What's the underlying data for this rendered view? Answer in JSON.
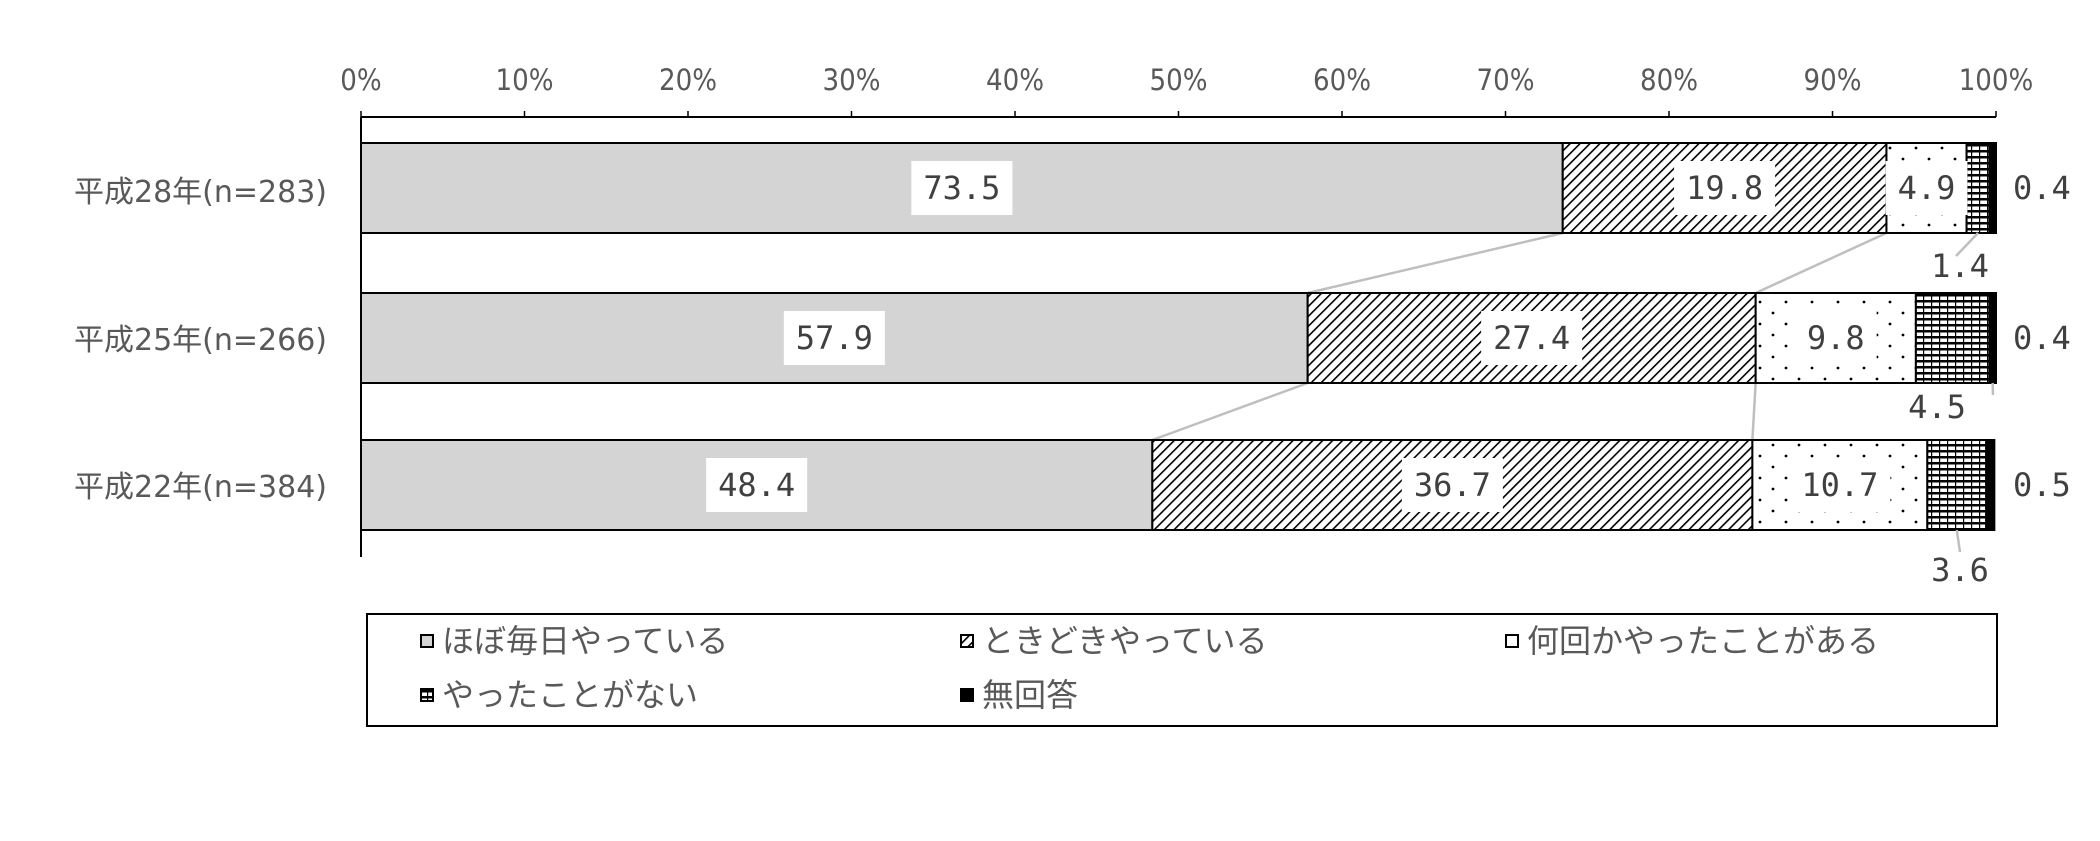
{
  "chart_data": {
    "type": "bar",
    "orientation": "horizontal",
    "stacked": true,
    "percent": true,
    "categories": [
      "平成28年(n=283)",
      "平成25年(n=266)",
      "平成22年(n=384)"
    ],
    "series": [
      {
        "name": "ほぼ毎日やっている",
        "values": [
          73.5,
          57.9,
          48.4
        ],
        "fill": "#d4d4d4",
        "pattern": "solid"
      },
      {
        "name": "ときどきやっている",
        "values": [
          19.8,
          27.4,
          36.7
        ],
        "fill": "#ffffff",
        "pattern": "diagonal"
      },
      {
        "name": "何回かやったことがある",
        "values": [
          4.9,
          9.8,
          10.7
        ],
        "fill": "#ffffff",
        "pattern": "dots"
      },
      {
        "name": "やったことがない",
        "values": [
          1.4,
          4.5,
          3.6
        ],
        "fill": "#ffffff",
        "pattern": "horizontal-lines"
      },
      {
        "name": "無回答",
        "values": [
          0.4,
          0.4,
          0.5
        ],
        "fill": "#000000",
        "pattern": "solid-dark"
      }
    ],
    "data_labels": [
      [
        "73.5",
        "19.8",
        "4.9",
        "1.4",
        "0.4"
      ],
      [
        "57.9",
        "27.4",
        "9.8",
        "4.5",
        "0.4"
      ],
      [
        "48.4",
        "36.7",
        "10.7",
        "3.6",
        "0.5"
      ]
    ],
    "xticks": [
      "0%",
      "10%",
      "20%",
      "30%",
      "40%",
      "50%",
      "60%",
      "70%",
      "80%",
      "90%",
      "100%"
    ],
    "xlim": [
      0,
      100
    ],
    "axis_position": "top",
    "grid": false,
    "series_lines": true,
    "legend_position": "bottom"
  }
}
